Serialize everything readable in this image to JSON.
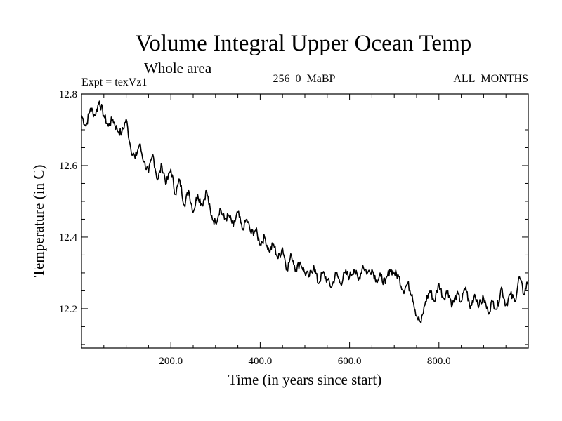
{
  "chart_data": {
    "type": "line",
    "title": "Volume Integral Upper Ocean Temp",
    "subtitle": "Whole area",
    "expt_label": "Expt = texVz1",
    "center_label": "256_0_MaBP",
    "right_label": "ALL_MONTHS",
    "xlabel": "Time (in years since start)",
    "ylabel": "Temperature (in C)",
    "xlim": [
      0,
      1000
    ],
    "ylim": [
      12.09,
      12.8
    ],
    "x_ticks": [
      200,
      400,
      600,
      800
    ],
    "x_tick_labels": [
      "200.0",
      "400.0",
      "600.0",
      "800.0"
    ],
    "y_ticks": [
      12.2,
      12.4,
      12.6,
      12.8
    ],
    "y_tick_labels": [
      "12.2",
      "12.4",
      "12.6",
      "12.8"
    ],
    "x_minor_step": 50,
    "y_minor_step": 0.05,
    "grid": false,
    "color": "#000000",
    "series": [
      {
        "name": "Volume Integral Upper Ocean Temp",
        "x": [
          0,
          10,
          20,
          30,
          40,
          50,
          60,
          70,
          80,
          90,
          100,
          110,
          120,
          130,
          140,
          150,
          160,
          170,
          180,
          190,
          200,
          210,
          220,
          230,
          240,
          250,
          260,
          270,
          280,
          290,
          300,
          310,
          320,
          330,
          340,
          350,
          360,
          370,
          380,
          390,
          400,
          410,
          420,
          430,
          440,
          450,
          460,
          470,
          480,
          490,
          500,
          510,
          520,
          530,
          540,
          550,
          560,
          570,
          580,
          590,
          600,
          610,
          620,
          630,
          640,
          650,
          660,
          670,
          680,
          690,
          700,
          710,
          720,
          730,
          740,
          750,
          760,
          770,
          780,
          790,
          800,
          810,
          820,
          830,
          840,
          850,
          860,
          870,
          880,
          890,
          900,
          910,
          920,
          930,
          940,
          950,
          960,
          970,
          980,
          990,
          1000
        ],
        "values": [
          12.74,
          12.71,
          12.76,
          12.74,
          12.78,
          12.74,
          12.71,
          12.73,
          12.7,
          12.69,
          12.73,
          12.65,
          12.62,
          12.66,
          12.61,
          12.58,
          12.63,
          12.56,
          12.6,
          12.55,
          12.59,
          12.52,
          12.56,
          12.49,
          12.53,
          12.47,
          12.52,
          12.49,
          12.53,
          12.46,
          12.44,
          12.48,
          12.45,
          12.46,
          12.43,
          12.47,
          12.42,
          12.45,
          12.41,
          12.42,
          12.38,
          12.4,
          12.36,
          12.38,
          12.34,
          12.37,
          12.31,
          12.35,
          12.31,
          12.33,
          12.3,
          12.29,
          12.32,
          12.27,
          12.3,
          12.28,
          12.26,
          12.3,
          12.27,
          12.3,
          12.29,
          12.31,
          12.28,
          12.32,
          12.3,
          12.31,
          12.28,
          12.29,
          12.27,
          12.31,
          12.3,
          12.29,
          12.25,
          12.27,
          12.24,
          12.18,
          12.16,
          12.22,
          12.25,
          12.22,
          12.27,
          12.23,
          12.25,
          12.21,
          12.24,
          12.22,
          12.26,
          12.2,
          12.24,
          12.21,
          12.23,
          12.19,
          12.22,
          12.2,
          12.26,
          12.21,
          12.24,
          12.22,
          12.29,
          12.24,
          12.28
        ]
      }
    ]
  }
}
